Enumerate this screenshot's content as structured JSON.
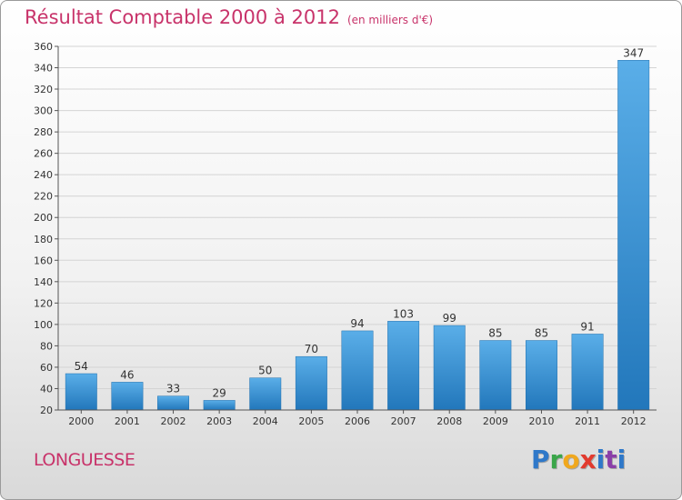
{
  "header": {
    "title": "Résultat Comptable 2000 à 2012",
    "subtitle": "(en milliers d'€)"
  },
  "footer": {
    "commune": "LONGUESSE",
    "logo_text": "Proxiti"
  },
  "colors": {
    "accent": "#c8336a",
    "bar_top": "#5aaee8",
    "bar_bottom": "#2277bb"
  },
  "chart_data": {
    "type": "bar",
    "categories": [
      "2000",
      "2001",
      "2002",
      "2003",
      "2004",
      "2005",
      "2006",
      "2007",
      "2008",
      "2009",
      "2010",
      "2011",
      "2012"
    ],
    "values": [
      54,
      46,
      33,
      29,
      50,
      70,
      94,
      103,
      99,
      85,
      85,
      91,
      347
    ],
    "title": "Résultat Comptable 2000 à 2012",
    "subtitle": "(en milliers d'€)",
    "ylim": [
      20,
      360
    ],
    "yticks": [
      20,
      40,
      60,
      80,
      100,
      120,
      140,
      160,
      180,
      200,
      220,
      240,
      260,
      280,
      300,
      320,
      340,
      360
    ],
    "grid": true,
    "data_labels": true
  }
}
